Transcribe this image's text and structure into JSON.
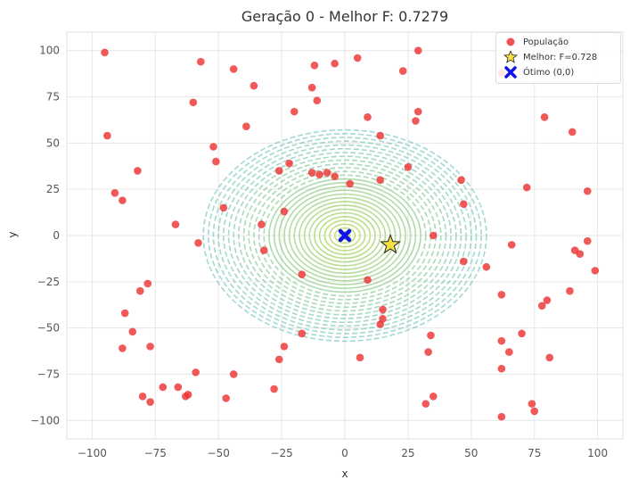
{
  "chart_data": {
    "type": "scatter",
    "title": "Geração 0 - Melhor F: 0.7279",
    "xlabel": "x",
    "ylabel": "y",
    "xlim": [
      -110,
      110
    ],
    "ylim": [
      -110,
      110
    ],
    "xticks": [
      -100,
      -75,
      -50,
      -25,
      0,
      25,
      50,
      75,
      100
    ],
    "yticks": [
      -100,
      -75,
      -50,
      -25,
      0,
      25,
      50,
      75,
      100
    ],
    "xtick_labels": [
      "−100",
      "−75",
      "−50",
      "−25",
      "0",
      "25",
      "50",
      "75",
      "100"
    ],
    "ytick_labels": [
      "−100",
      "−75",
      "−50",
      "−25",
      "0",
      "25",
      "50",
      "75",
      "100"
    ],
    "grid": true,
    "legend_position": "top-right",
    "contour": {
      "center": [
        0,
        0
      ],
      "max_radius": 56
    },
    "series": [
      {
        "name": "População",
        "color": "#ee3333",
        "points": [
          [
            -95,
            99
          ],
          [
            -57,
            94
          ],
          [
            -44,
            90
          ],
          [
            -12,
            92
          ],
          [
            -4,
            93
          ],
          [
            5,
            96
          ],
          [
            23,
            89
          ],
          [
            29,
            100
          ],
          [
            62,
            88
          ],
          [
            -60,
            72
          ],
          [
            -36,
            81
          ],
          [
            -13,
            80
          ],
          [
            -11,
            73
          ],
          [
            -20,
            67
          ],
          [
            9,
            64
          ],
          [
            29,
            67
          ],
          [
            28,
            62
          ],
          [
            79,
            64
          ],
          [
            -94,
            54
          ],
          [
            -39,
            59
          ],
          [
            -52,
            48
          ],
          [
            -51,
            40
          ],
          [
            14,
            54
          ],
          [
            90,
            56
          ],
          [
            -82,
            35
          ],
          [
            -22,
            39
          ],
          [
            -26,
            35
          ],
          [
            -13,
            34
          ],
          [
            -10,
            33
          ],
          [
            -7,
            34
          ],
          [
            -4,
            32
          ],
          [
            2,
            28
          ],
          [
            14,
            30
          ],
          [
            25,
            37
          ],
          [
            46,
            30
          ],
          [
            -91,
            23
          ],
          [
            -88,
            19
          ],
          [
            72,
            26
          ],
          [
            96,
            24
          ],
          [
            -48,
            15
          ],
          [
            -24,
            13
          ],
          [
            47,
            17
          ],
          [
            -67,
            6
          ],
          [
            -33,
            6
          ],
          [
            35,
            0
          ],
          [
            -58,
            -4
          ],
          [
            -32,
            -8
          ],
          [
            66,
            -5
          ],
          [
            96,
            -3
          ],
          [
            91,
            -8
          ],
          [
            93,
            -10
          ],
          [
            47,
            -14
          ],
          [
            56,
            -17
          ],
          [
            99,
            -19
          ],
          [
            -78,
            -26
          ],
          [
            -17,
            -21
          ],
          [
            9,
            -24
          ],
          [
            -81,
            -30
          ],
          [
            62,
            -32
          ],
          [
            89,
            -30
          ],
          [
            -87,
            -42
          ],
          [
            15,
            -40
          ],
          [
            78,
            -38
          ],
          [
            80,
            -35
          ],
          [
            15,
            -45
          ],
          [
            14,
            -48
          ],
          [
            -17,
            -53
          ],
          [
            -84,
            -52
          ],
          [
            34,
            -54
          ],
          [
            70,
            -53
          ],
          [
            62,
            -57
          ],
          [
            -88,
            -61
          ],
          [
            -77,
            -60
          ],
          [
            -24,
            -60
          ],
          [
            33,
            -63
          ],
          [
            65,
            -63
          ],
          [
            81,
            -66
          ],
          [
            6,
            -66
          ],
          [
            -26,
            -67
          ],
          [
            62,
            -72
          ],
          [
            -59,
            -74
          ],
          [
            -44,
            -75
          ],
          [
            -72,
            -82
          ],
          [
            -66,
            -82
          ],
          [
            -28,
            -83
          ],
          [
            -80,
            -87
          ],
          [
            -63,
            -87
          ],
          [
            -62,
            -86
          ],
          [
            -47,
            -88
          ],
          [
            35,
            -87
          ],
          [
            -77,
            -90
          ],
          [
            32,
            -91
          ],
          [
            74,
            -91
          ],
          [
            75,
            -95
          ],
          [
            62,
            -98
          ]
        ]
      },
      {
        "name": "Melhor: F=0.728",
        "color": "#f5e042",
        "points": [
          [
            18,
            -5
          ]
        ]
      },
      {
        "name": "Ótimo (0,0)",
        "color": "#1111ee",
        "points": [
          [
            0,
            0
          ]
        ]
      }
    ]
  }
}
